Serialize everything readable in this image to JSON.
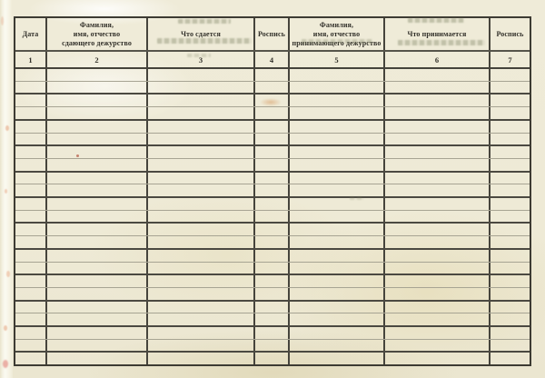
{
  "document": {
    "kind": "scanned blank ruled journal page (duty handover log, Russian)",
    "language": "ru"
  },
  "table": {
    "columns": [
      {
        "number": "1",
        "label": "Дата"
      },
      {
        "number": "2",
        "label": "Фамилия,\nимя, отчество\nсдающего дежурство"
      },
      {
        "number": "3",
        "label": "Что сдается"
      },
      {
        "number": "4",
        "label": "Роспись"
      },
      {
        "number": "5",
        "label": "Фамилия,\nимя, отчество\nпринимающего дежурство"
      },
      {
        "number": "6",
        "label": "Что принимается"
      },
      {
        "number": "7",
        "label": "Роспись"
      }
    ],
    "body_row_count": 23,
    "empty_cell_value": ""
  },
  "colors": {
    "paper": "#eeead6",
    "paper_highlight": "#fbfaf1",
    "line_dark": "#46443c",
    "line_light": "#a7a493",
    "outer_border": "#3d3b33",
    "ink": "#32302a",
    "bleedthrough": "#7c8062",
    "stain_orange": "#cd7d37",
    "binding_pink": "#de7369"
  }
}
